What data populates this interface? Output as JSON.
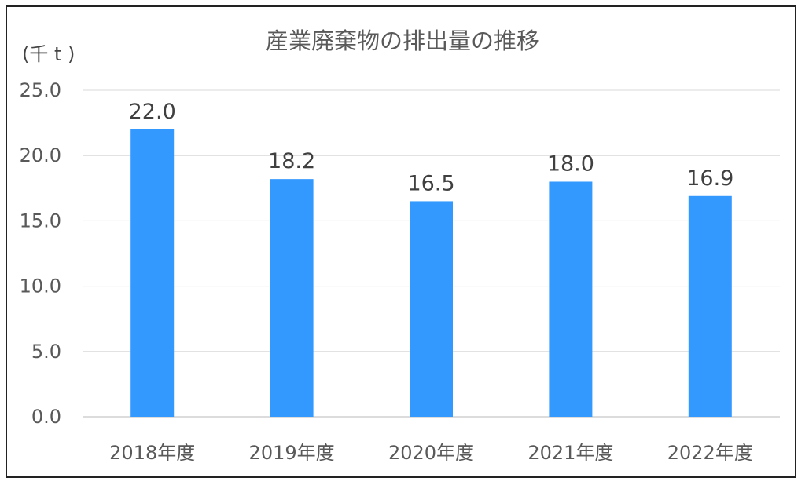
{
  "chart_data": {
    "type": "bar",
    "title": "産業廃棄物の排出量の推移",
    "unit_label": "(千 t )",
    "xlabel": "",
    "ylabel": "",
    "categories": [
      "2018年度",
      "2019年度",
      "2020年度",
      "2021年度",
      "2022年度"
    ],
    "series": [
      {
        "values": [
          22.0,
          18.2,
          16.5,
          18.0,
          16.9
        ],
        "color": "#3399ff"
      }
    ],
    "data_labels": [
      "22.0",
      "18.2",
      "16.5",
      "18.0",
      "16.9"
    ],
    "ylim": [
      0,
      25
    ],
    "yticks": [
      0,
      5,
      10,
      15,
      20,
      25
    ],
    "ytick_labels": [
      "0.0",
      "5.0",
      "10.0",
      "15.0",
      "20.0",
      "25.0"
    ],
    "grid": true,
    "legend": "none"
  }
}
